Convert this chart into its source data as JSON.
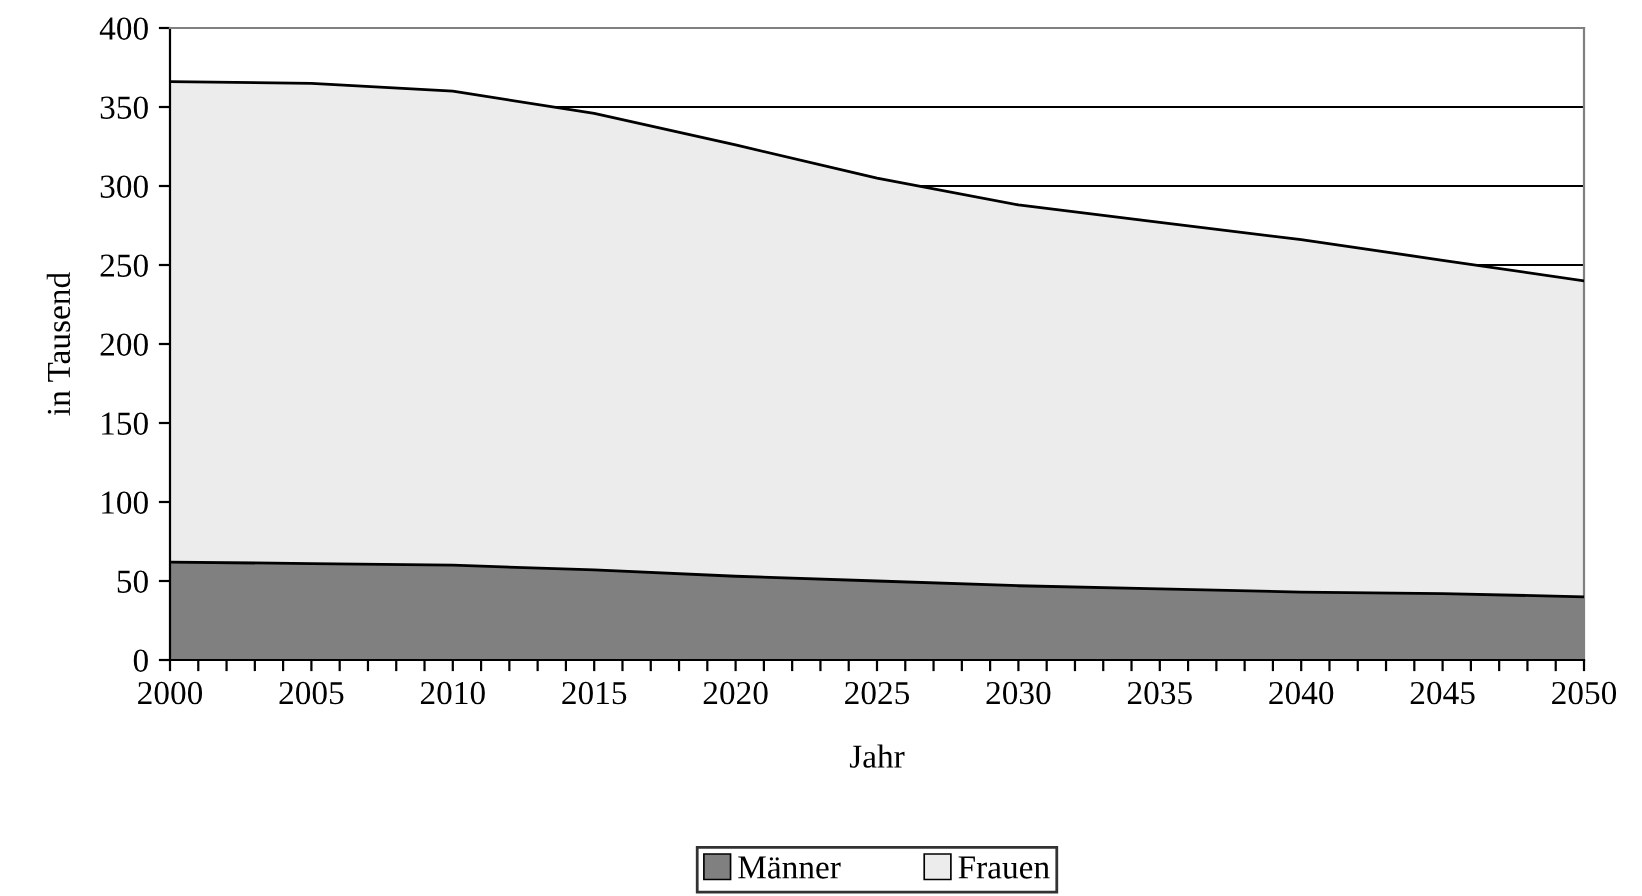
{
  "chart_data": {
    "type": "area",
    "stacked": true,
    "xlabel": "Jahr",
    "ylabel": "in Tausend",
    "x": [
      2000,
      2005,
      2010,
      2015,
      2020,
      2025,
      2030,
      2035,
      2040,
      2045,
      2050
    ],
    "series": [
      {
        "name": "Männer",
        "color": "#808080",
        "values": [
          62,
          61,
          60,
          57,
          53,
          50,
          47,
          45,
          43,
          42,
          40
        ]
      },
      {
        "name": "Frauen",
        "color": "#ececec",
        "values": [
          304,
          304,
          300,
          289,
          273,
          255,
          241,
          232,
          223,
          211,
          200
        ]
      }
    ],
    "xlim": [
      2000,
      2050
    ],
    "xticks": [
      2000,
      {
        "value": 2001,
        "label": null
      },
      {
        "value": 2002,
        "label": null
      },
      {
        "value": 2003,
        "label": null
      },
      {
        "value": 2004,
        "label": null
      },
      2005,
      {
        "value": 2006,
        "label": null
      },
      {
        "value": 2007,
        "label": null
      },
      {
        "value": 2008,
        "label": null
      },
      {
        "value": 2009,
        "label": null
      },
      2010,
      {
        "value": 2011,
        "label": null
      },
      {
        "value": 2012,
        "label": null
      },
      {
        "value": 2013,
        "label": null
      },
      {
        "value": 2014,
        "label": null
      },
      2015,
      {
        "value": 2016,
        "label": null
      },
      {
        "value": 2017,
        "label": null
      },
      {
        "value": 2018,
        "label": null
      },
      {
        "value": 2019,
        "label": null
      },
      2020,
      {
        "value": 2021,
        "label": null
      },
      {
        "value": 2022,
        "label": null
      },
      {
        "value": 2023,
        "label": null
      },
      {
        "value": 2024,
        "label": null
      },
      2025,
      {
        "value": 2026,
        "label": null
      },
      {
        "value": 2027,
        "label": null
      },
      {
        "value": 2028,
        "label": null
      },
      {
        "value": 2029,
        "label": null
      },
      2030,
      {
        "value": 2031,
        "label": null
      },
      {
        "value": 2032,
        "label": null
      },
      {
        "value": 2033,
        "label": null
      },
      {
        "value": 2034,
        "label": null
      },
      2035,
      {
        "value": 2036,
        "label": null
      },
      {
        "value": 2037,
        "label": null
      },
      {
        "value": 2038,
        "label": null
      },
      {
        "value": 2039,
        "label": null
      },
      2040,
      {
        "value": 2041,
        "label": null
      },
      {
        "value": 2042,
        "label": null
      },
      {
        "value": 2043,
        "label": null
      },
      {
        "value": 2044,
        "label": null
      },
      2045,
      {
        "value": 2046,
        "label": null
      },
      {
        "value": 2047,
        "label": null
      },
      {
        "value": 2048,
        "label": null
      },
      {
        "value": 2049,
        "label": null
      },
      2050
    ],
    "ylim": [
      0,
      400
    ],
    "yticks": [
      0,
      50,
      100,
      150,
      200,
      250,
      300,
      350,
      400
    ],
    "grid": "y",
    "legend": "bottom"
  }
}
